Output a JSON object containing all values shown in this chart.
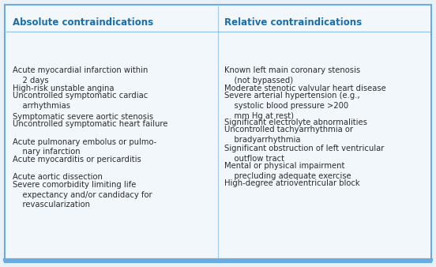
{
  "bg_color": "#e8f0f8",
  "inner_bg": "#f0f5fb",
  "border_color": "#6aabe0",
  "header_color": "#1a6fa8",
  "text_color": "#2c2c2c",
  "col1_header": "Absolute contraindications",
  "col2_header": "Relative contraindications",
  "font_size": 7.2,
  "header_font_size": 8.5,
  "col1_positions": [
    [
      0.855,
      "Acute myocardial infarction within\n    2 days"
    ],
    [
      0.775,
      "High-risk unstable angina"
    ],
    [
      0.74,
      "Uncontrolled symptomatic cardiac\n    arrhythmias"
    ],
    [
      0.645,
      "Symptomatic severe aortic stenosis"
    ],
    [
      0.61,
      "Uncontrolled symptomatic heart failure"
    ],
    [
      0.53,
      "Acute pulmonary embolus or pulmo-\n    nary infarction"
    ],
    [
      0.45,
      "Acute myocarditis or pericarditis"
    ],
    [
      0.37,
      "Acute aortic dissection"
    ],
    [
      0.335,
      "Severe comorbidity limiting life\n    expectancy and/or candidacy for\n    revascularization"
    ]
  ],
  "col2_positions": [
    [
      0.855,
      "Known left main coronary stenosis\n    (not bypassed)"
    ],
    [
      0.775,
      "Moderate stenotic valvular heart disease"
    ],
    [
      0.74,
      "Severe arterial hypertension (e.g.,\n    systolic blood pressure >200\n    mm Hg at rest)"
    ],
    [
      0.62,
      "Significant electrolyte abnormalities"
    ],
    [
      0.585,
      "Uncontrolled tachyarrhythmia or\n    bradyarrhythmia"
    ],
    [
      0.5,
      "Significant obstruction of left ventricular\n    outflow tract"
    ],
    [
      0.42,
      "Mental or physical impairment\n    precluding adequate exercise"
    ],
    [
      0.34,
      "High-degree atrioventricular block"
    ]
  ]
}
